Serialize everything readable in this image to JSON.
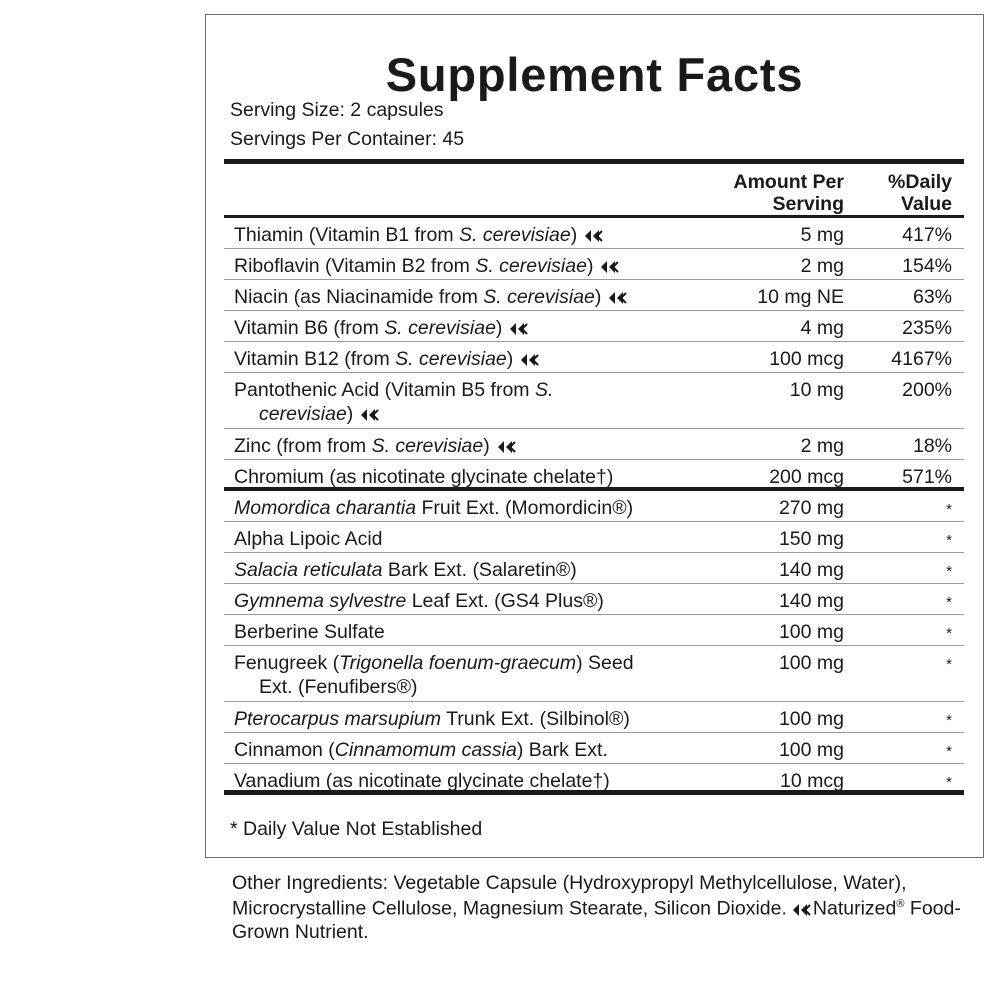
{
  "title": "Supplement Facts",
  "serving_size": "Serving Size: 2 capsules",
  "servings_per_container": "Servings Per Container: 45",
  "headers": {
    "amount": "Amount Per\nServing",
    "daily_value": "%Daily\nValue"
  },
  "vitamins": [
    {
      "pre": "Thiamin (Vitamin B1 from ",
      "ital": "S. cerevisiae",
      "post": ")",
      "amount": "5 mg",
      "dv": "417%",
      "mark": "naturized-icon"
    },
    {
      "pre": "Riboflavin (Vitamin B2 from ",
      "ital": "S. cerevisiae",
      "post": ")",
      "amount": "2 mg",
      "dv": "154%",
      "mark": "naturized-icon"
    },
    {
      "pre": "Niacin (as Niacinamide from ",
      "ital": "S. cerevisiae",
      "post": ")",
      "amount": "10 mg NE",
      "dv": "63%",
      "mark": "naturized-icon"
    },
    {
      "pre": "Vitamin B6 (from ",
      "ital": "S. cerevisiae",
      "post": ")",
      "amount": "4 mg",
      "dv": "235%",
      "mark": "naturized-icon"
    },
    {
      "pre": "Vitamin B12 (from ",
      "ital": "S. cerevisiae",
      "post": ")",
      "amount": "100 mcg",
      "dv": "4167%",
      "mark": "naturized-icon"
    },
    {
      "pre": "Pantothenic Acid (Vitamin B5 from ",
      "ital": "S.",
      "ital2": "cerevisiae",
      "post": ")",
      "amount": "10 mg",
      "dv": "200%",
      "mark": "naturized-icon"
    },
    {
      "pre": "Zinc (from from ",
      "ital": "S. cerevisiae",
      "post": ")",
      "amount": "2 mg",
      "dv": "18%",
      "mark": "naturized-icon"
    },
    {
      "pre": "Chromium (as nicotinate glycinate chelate†)",
      "ital": "",
      "post": "",
      "amount": "200 mcg",
      "dv": "571%"
    }
  ],
  "botanicals": [
    {
      "pre": "",
      "ital": "Momordica charantia",
      "post": " Fruit Ext. (Momordicin®)",
      "amount": "270 mg",
      "dv": "*"
    },
    {
      "pre": "Alpha Lipoic Acid",
      "ital": "",
      "post": "",
      "amount": "150 mg",
      "dv": "*"
    },
    {
      "pre": "",
      "ital": "Salacia reticulata",
      "post": " Bark Ext. (Salaretin®)",
      "amount": "140 mg",
      "dv": "*"
    },
    {
      "pre": "",
      "ital": "Gymnema sylvestre",
      "post": " Leaf Ext. (GS4 Plus®)",
      "amount": "140 mg",
      "dv": "*"
    },
    {
      "pre": "Berberine Sulfate",
      "ital": "",
      "post": "",
      "amount": "100 mg",
      "dv": "*"
    },
    {
      "pre": "Fenugreek (",
      "ital": "Trigonella foenum-graecum",
      "post": ") Seed",
      "line2": "Ext. (Fenufibers®)",
      "amount": "100 mg",
      "dv": "*"
    },
    {
      "pre": "",
      "ital": "Pterocarpus marsupium",
      "post": " Trunk Ext. (Silbinol®)",
      "amount": "100 mg",
      "dv": "*"
    },
    {
      "pre": "Cinnamon (",
      "ital": "Cinnamomum cassia",
      "post": ") Bark Ext.",
      "amount": "100 mg",
      "dv": "*"
    },
    {
      "pre": "Vanadium (as nicotinate glycinate chelate†)",
      "ital": "",
      "post": "",
      "amount": "10 mcg",
      "dv": "*"
    }
  ],
  "footnote": "* Daily Value Not Established",
  "other_ingredients": {
    "text": "Other Ingredients: Vegetable Capsule (Hydroxypropyl Methylcellulose, Water), Microcrystalline Cellulose, Magnesium Stearate, Silicon Dioxide.",
    "mark": "naturized-icon",
    "tail_pre": "Naturized",
    "tail_sup": "®",
    "tail_post": " Food-Grown Nutrient."
  }
}
